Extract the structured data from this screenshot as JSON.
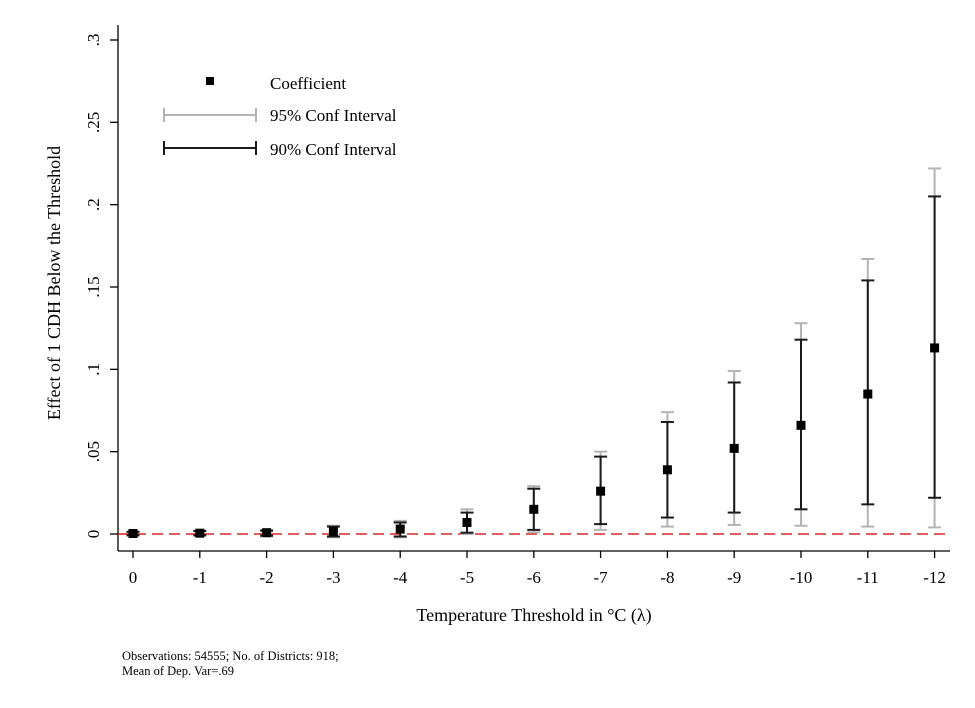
{
  "chart_data": {
    "type": "scatter",
    "xlabel": "Temperature Threshold in °C (λ)",
    "ylabel": "Effect of 1 CDH Below the Threshold",
    "ylim": [
      0,
      0.3
    ],
    "y_ticks": [
      0,
      0.05,
      0.1,
      0.15,
      0.2,
      0.25,
      0.3
    ],
    "y_tick_labels": [
      "0",
      ".05",
      ".1",
      ".15",
      ".2",
      ".25",
      ".3"
    ],
    "categories": [
      "0",
      "-1",
      "-2",
      "-3",
      "-4",
      "-5",
      "-6",
      "-7",
      "-8",
      "-9",
      "-10",
      "-11",
      "-12"
    ],
    "legend": {
      "placement": "top-left",
      "entries": [
        "Coefficient",
        "95% Conf Interval",
        "90% Conf Interval"
      ]
    },
    "reference_line": {
      "y": 0,
      "color": "#d62728",
      "style": "dashed"
    },
    "series": [
      {
        "name": "Coefficient",
        "values": [
          0.0003,
          0.0005,
          0.0008,
          0.0015,
          0.003,
          0.007,
          0.015,
          0.026,
          0.039,
          0.052,
          0.066,
          0.085,
          0.113
        ]
      },
      {
        "name": "95% Conf Interval",
        "low": [
          -0.001,
          -0.001,
          -0.0015,
          -0.002,
          -0.002,
          0.0,
          0.001,
          0.0025,
          0.0045,
          0.0055,
          0.005,
          0.0045,
          0.004
        ],
        "high": [
          0.0015,
          0.002,
          0.0025,
          0.005,
          0.008,
          0.015,
          0.029,
          0.05,
          0.074,
          0.099,
          0.128,
          0.167,
          0.222
        ]
      },
      {
        "name": "90% Conf Interval",
        "low": [
          -0.0008,
          -0.0008,
          -0.001,
          -0.0015,
          -0.0015,
          0.0008,
          0.0025,
          0.006,
          0.01,
          0.013,
          0.015,
          0.018,
          0.022
        ],
        "high": [
          0.0013,
          0.0018,
          0.002,
          0.0045,
          0.007,
          0.013,
          0.0275,
          0.047,
          0.068,
          0.092,
          0.118,
          0.154,
          0.205
        ]
      }
    ],
    "colors": {
      "ci95": "#b3b3b3",
      "ci90": "#1a1a1a",
      "point": "#000000",
      "reference": "#d62728"
    }
  },
  "notes": {
    "line1": "Observations: 54555; No. of Districts: 918;",
    "line2": "Mean of Dep. Var=.69"
  }
}
